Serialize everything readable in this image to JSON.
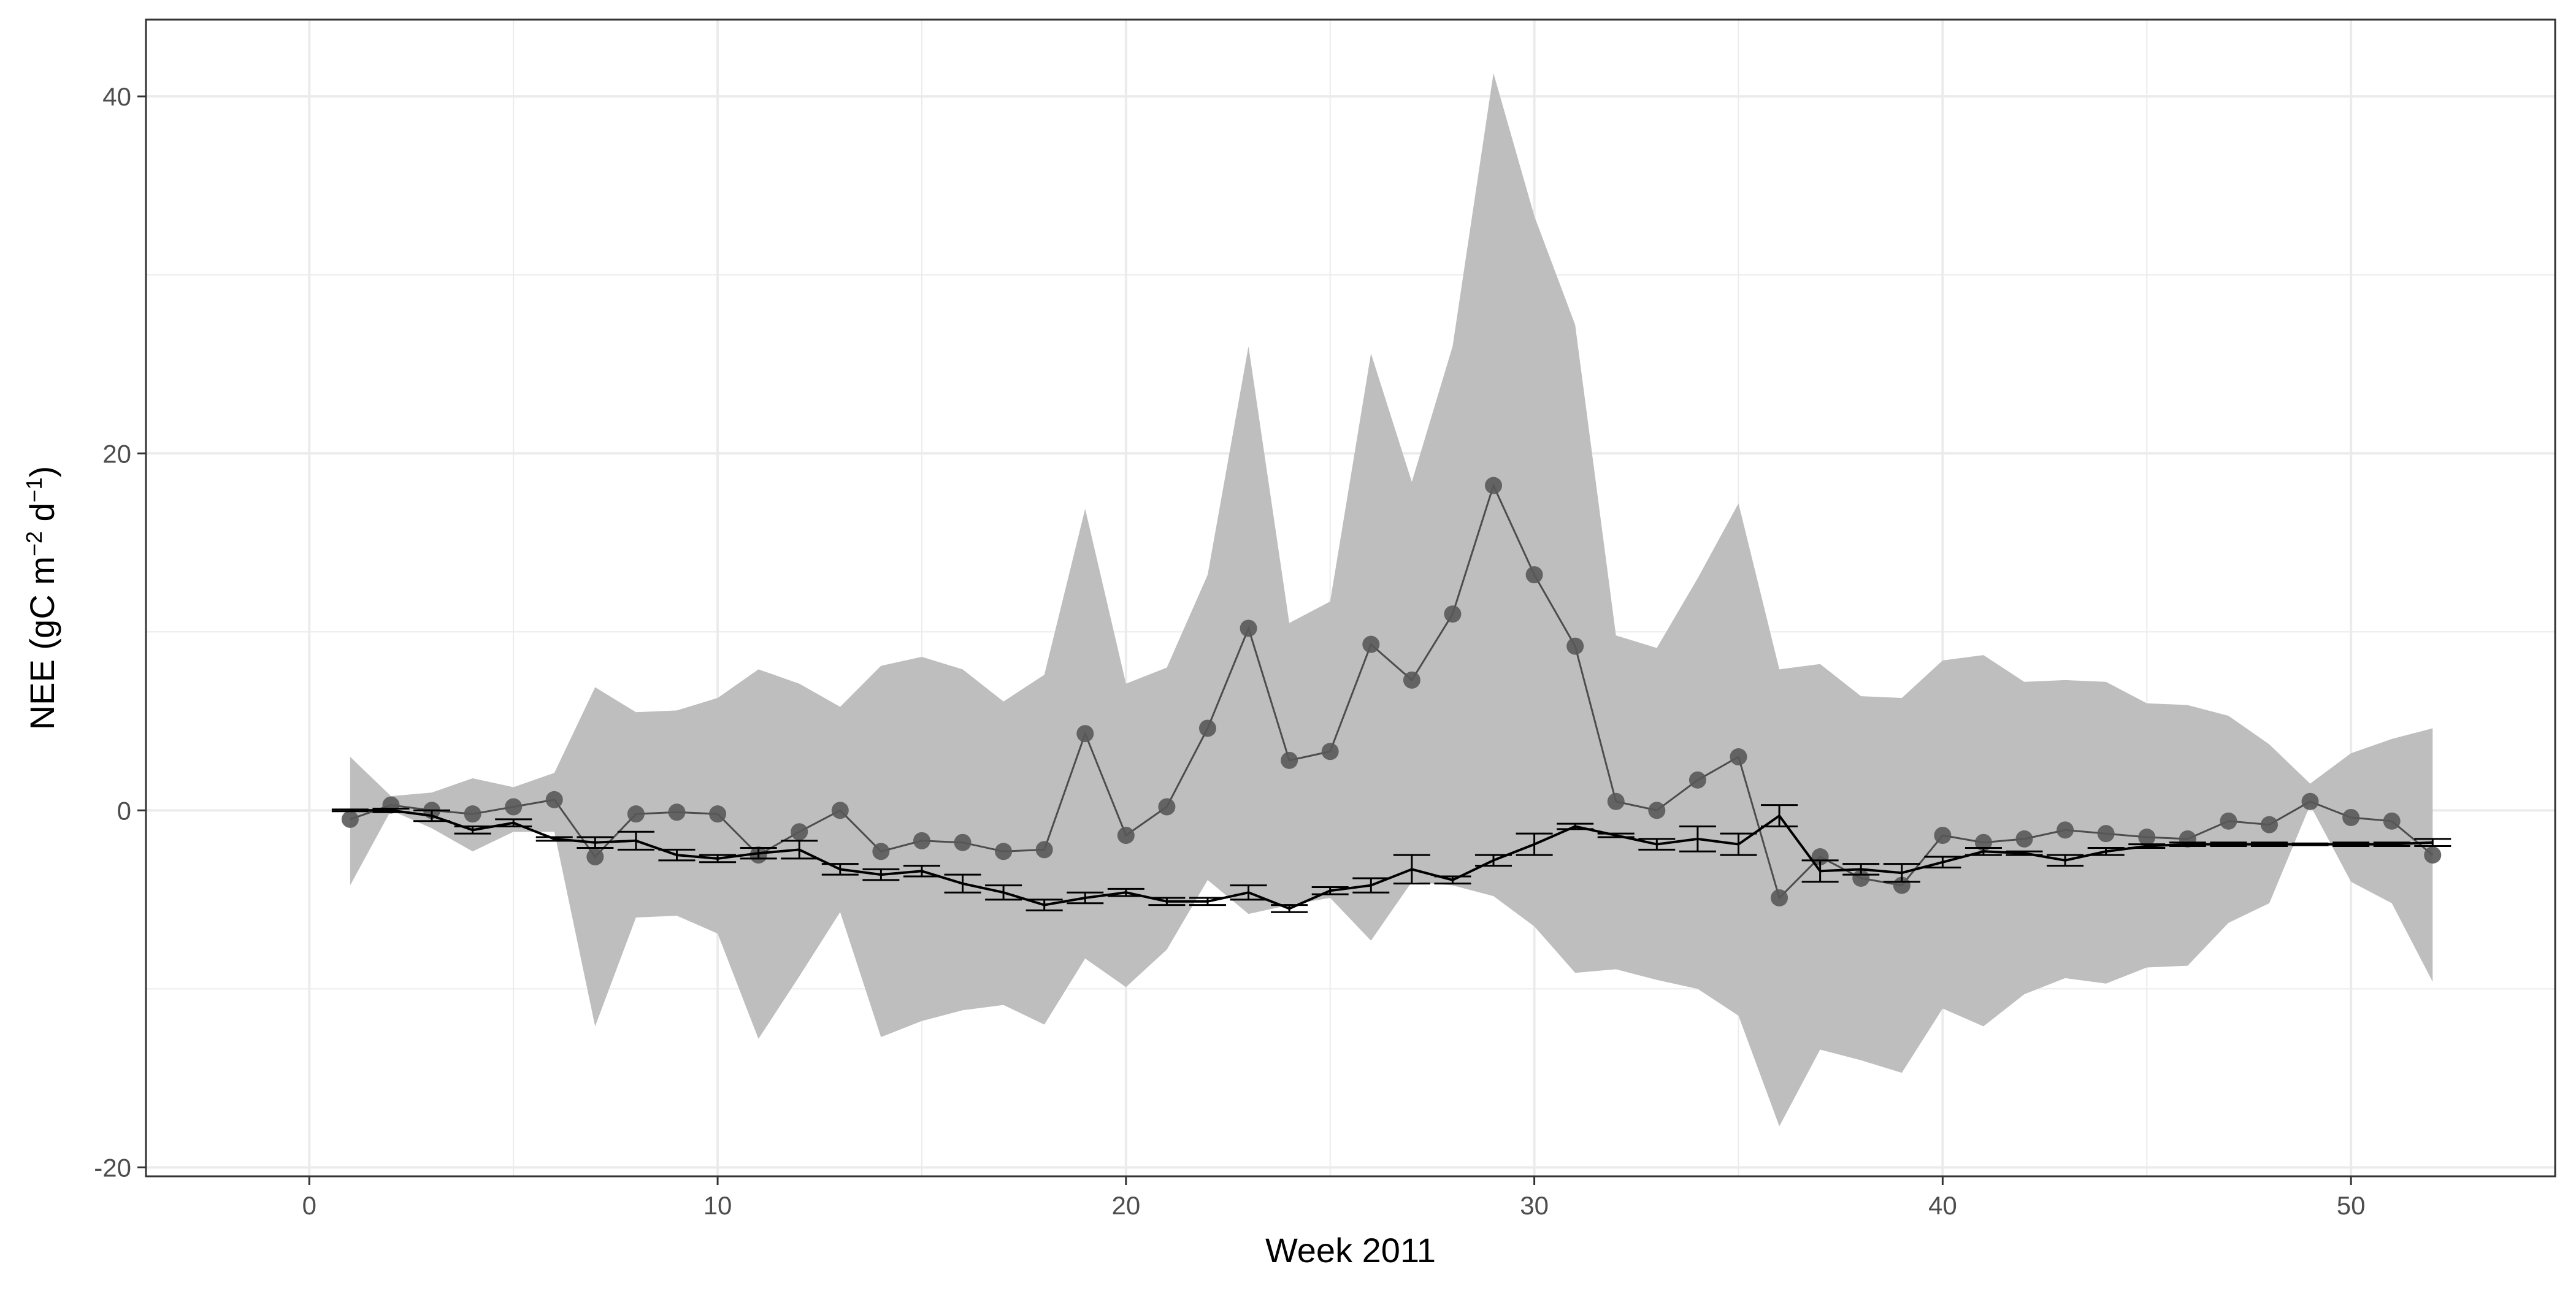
{
  "chart_data": {
    "type": "line",
    "title": "",
    "xlabel": "Week 2011",
    "ylabel": "NEE (gC m",
    "ylabel_sup1": "−2",
    "ylabel_mid": " d",
    "ylabel_sup2": "−1",
    "ylabel_end": ")",
    "xlim": [
      -4,
      55
    ],
    "ylim": [
      -20.5,
      44.3
    ],
    "x_ticks": [
      0,
      10,
      20,
      30,
      40,
      50
    ],
    "y_ticks": [
      -20,
      0,
      20,
      40
    ],
    "x_tick_labels": [
      "0",
      "10",
      "20",
      "30",
      "40",
      "50"
    ],
    "y_tick_labels": [
      "-20",
      "0",
      "20",
      "40"
    ],
    "grid": true,
    "legend": "none",
    "colors": {
      "band": "#bebebe",
      "points": "#595959",
      "point_line": "#4d4d4d",
      "mean_line": "#000000",
      "grid": "#ebebeb",
      "panel_border": "#333333"
    },
    "series": [
      {
        "kind": "band",
        "x": [
          1,
          2,
          3,
          4,
          5,
          6,
          7,
          8,
          9,
          10,
          11,
          12,
          13,
          14,
          15,
          16,
          17,
          18,
          19,
          20,
          21,
          22,
          23,
          24,
          25,
          26,
          27,
          28,
          29,
          30,
          31,
          32,
          33,
          34,
          35,
          36,
          37,
          38,
          39,
          40,
          41,
          42,
          43,
          44,
          45,
          46,
          47,
          48,
          49,
          50,
          51,
          52
        ],
        "upper": [
          3.0,
          0.8,
          1.0,
          1.8,
          1.3,
          2.1,
          6.9,
          5.5,
          5.6,
          6.3,
          7.9,
          7.1,
          5.8,
          8.1,
          8.6,
          7.9,
          6.1,
          7.6,
          16.9,
          7.1,
          8.0,
          13.2,
          26.0,
          10.5,
          11.7,
          25.6,
          18.4,
          26.0,
          41.3,
          33.3,
          27.2,
          9.8,
          9.1,
          13.0,
          17.2,
          7.9,
          8.2,
          6.4,
          6.3,
          8.4,
          8.7,
          7.2,
          7.3,
          7.2,
          6.0,
          5.9,
          5.3,
          3.7,
          1.5,
          3.2,
          4.0,
          4.6
        ],
        "lower": [
          -4.2,
          0.0,
          -1.0,
          -2.3,
          -1.2,
          -1.2,
          -12.1,
          -6.0,
          -5.9,
          -6.9,
          -12.8,
          -9.3,
          -5.7,
          -12.7,
          -11.8,
          -11.2,
          -10.9,
          -12.0,
          -8.3,
          -9.9,
          -7.8,
          -3.9,
          -5.8,
          -5.3,
          -4.9,
          -7.3,
          -4.0,
          -4.2,
          -4.8,
          -6.5,
          -9.1,
          -8.9,
          -9.5,
          -10.0,
          -11.5,
          -17.7,
          -13.4,
          -14.0,
          -14.7,
          -11.1,
          -12.1,
          -10.3,
          -9.4,
          -9.7,
          -8.8,
          -8.7,
          -6.3,
          -5.2,
          0.3,
          -4.0,
          -5.2,
          -9.6
        ]
      },
      {
        "kind": "points",
        "x": [
          1,
          2,
          3,
          4,
          5,
          6,
          7,
          8,
          9,
          10,
          11,
          12,
          13,
          14,
          15,
          16,
          17,
          18,
          19,
          20,
          21,
          22,
          23,
          24,
          25,
          26,
          27,
          28,
          29,
          30,
          31,
          32,
          33,
          34,
          35,
          36,
          37,
          38,
          39,
          40,
          41,
          42,
          43,
          44,
          45,
          46,
          47,
          48,
          49,
          50,
          51,
          52
        ],
        "values": [
          -0.5,
          0.3,
          0.0,
          -0.2,
          0.2,
          0.6,
          -2.6,
          -0.2,
          -0.1,
          -0.2,
          -2.5,
          -1.2,
          0.0,
          -2.3,
          -1.7,
          -1.8,
          -2.3,
          -2.2,
          4.3,
          -1.4,
          0.2,
          4.6,
          10.2,
          2.8,
          3.3,
          9.3,
          7.3,
          11.0,
          18.2,
          13.2,
          9.2,
          0.5,
          0.0,
          1.7,
          3.0,
          -4.9,
          -2.6,
          -3.8,
          -4.2,
          -1.4,
          -1.8,
          -1.6,
          -1.1,
          -1.3,
          -1.5,
          -1.6,
          -0.6,
          -0.8,
          0.5,
          -0.4,
          -0.6,
          -2.5
        ]
      },
      {
        "kind": "mean",
        "x": [
          1,
          2,
          3,
          4,
          5,
          6,
          7,
          8,
          9,
          10,
          11,
          12,
          13,
          14,
          15,
          16,
          17,
          18,
          19,
          20,
          21,
          22,
          23,
          24,
          25,
          26,
          27,
          28,
          29,
          30,
          31,
          32,
          33,
          34,
          35,
          36,
          37,
          38,
          39,
          40,
          41,
          42,
          43,
          44,
          45,
          46,
          47,
          48,
          49,
          50,
          51,
          52
        ],
        "values": [
          0.0,
          0.0,
          -0.3,
          -1.1,
          -0.7,
          -1.6,
          -1.8,
          -1.7,
          -2.5,
          -2.7,
          -2.4,
          -2.2,
          -3.3,
          -3.6,
          -3.4,
          -4.1,
          -4.6,
          -5.3,
          -4.9,
          -4.6,
          -5.1,
          -5.1,
          -4.6,
          -5.5,
          -4.5,
          -4.2,
          -3.3,
          -3.9,
          -2.8,
          -1.9,
          -0.9,
          -1.4,
          -1.9,
          -1.6,
          -1.9,
          -0.3,
          -3.4,
          -3.3,
          -3.5,
          -2.9,
          -2.3,
          -2.4,
          -2.8,
          -2.3,
          -2.0,
          -1.9,
          -1.9,
          -1.9,
          -1.9,
          -1.9,
          -1.9,
          -1.8
        ],
        "err": [
          0.05,
          0.1,
          0.3,
          0.2,
          0.2,
          0.1,
          0.3,
          0.5,
          0.3,
          0.2,
          0.3,
          0.5,
          0.3,
          0.3,
          0.3,
          0.5,
          0.4,
          0.3,
          0.3,
          0.2,
          0.2,
          0.2,
          0.4,
          0.2,
          0.2,
          0.4,
          0.8,
          0.2,
          0.3,
          0.6,
          0.15,
          0.1,
          0.3,
          0.7,
          0.6,
          0.6,
          0.6,
          0.3,
          0.5,
          0.3,
          0.2,
          0.1,
          0.3,
          0.2,
          0.1,
          0.1,
          0.1,
          0.1,
          0.05,
          0.1,
          0.1,
          0.2
        ]
      }
    ]
  }
}
